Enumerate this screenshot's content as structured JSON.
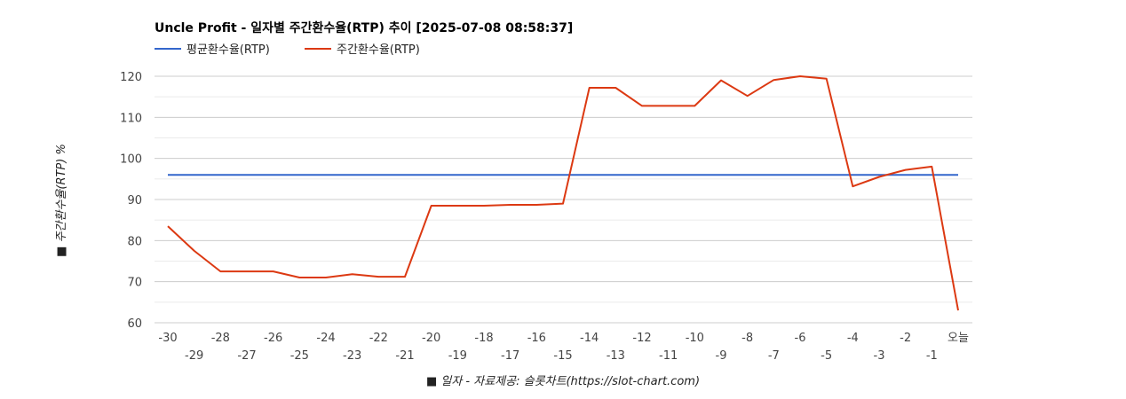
{
  "chart_data": {
    "type": "line",
    "title": "Uncle Profit - 일자별 주간환수율(RTP) 추이 [2025-07-08 08:58:37]",
    "xlabel": "■ 일자 - 자료제공: 슬롯차트(https://slot-chart.com)",
    "ylabel": "■ 주간환수율(RTP) %",
    "ylim": [
      60,
      120
    ],
    "yticks": [
      60,
      70,
      80,
      90,
      100,
      110,
      120
    ],
    "grid": true,
    "legend_position": "top-left",
    "categories": [
      "-30",
      "-29",
      "-28",
      "-27",
      "-26",
      "-25",
      "-24",
      "-23",
      "-22",
      "-21",
      "-20",
      "-19",
      "-18",
      "-17",
      "-16",
      "-15",
      "-14",
      "-13",
      "-12",
      "-11",
      "-10",
      "-9",
      "-8",
      "-7",
      "-6",
      "-5",
      "-4",
      "-3",
      "-2",
      "-1",
      "오늘"
    ],
    "series": [
      {
        "name": "평균환수율(RTP)",
        "color": "#3366cc",
        "values": [
          96,
          96,
          96,
          96,
          96,
          96,
          96,
          96,
          96,
          96,
          96,
          96,
          96,
          96,
          96,
          96,
          96,
          96,
          96,
          96,
          96,
          96,
          96,
          96,
          96,
          96,
          96,
          96,
          96,
          96,
          96
        ]
      },
      {
        "name": "주간환수율(RTP)",
        "color": "#dc3912",
        "values": [
          83.5,
          77.5,
          72.5,
          72.5,
          72.5,
          71,
          71,
          71.8,
          71.2,
          71.2,
          88.5,
          88.5,
          88.5,
          88.7,
          88.7,
          89,
          117.2,
          117.2,
          112.8,
          112.8,
          112.8,
          119,
          115.2,
          119.1,
          120,
          119.4,
          93.2,
          95.5,
          97.2,
          98,
          63
        ]
      }
    ]
  }
}
